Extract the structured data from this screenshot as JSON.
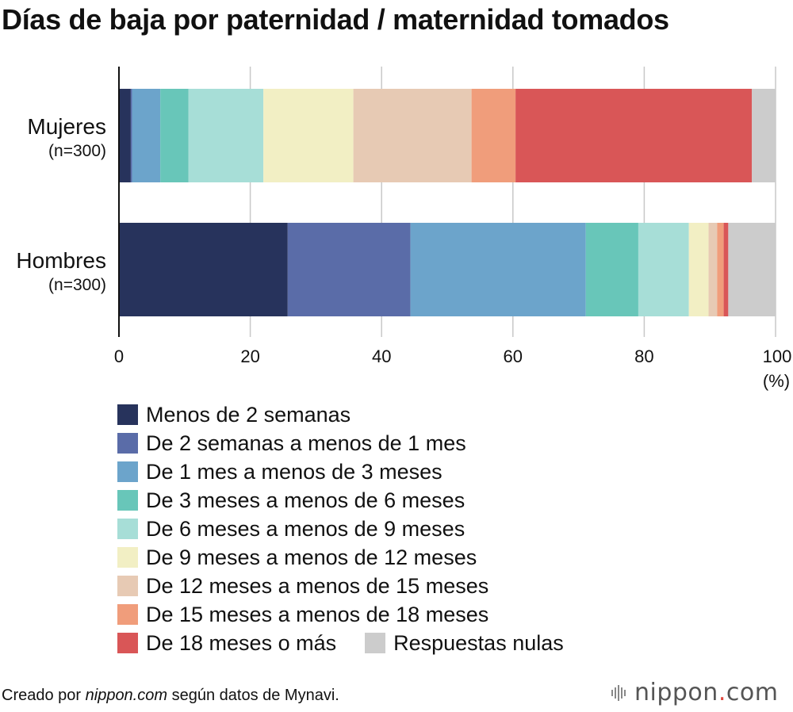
{
  "title": "Días de baja por paternidad / maternidad tomados",
  "chart_data": {
    "type": "bar",
    "orientation": "horizontal",
    "stacked": true,
    "categories": [
      {
        "name": "Mujeres",
        "n": "(n=300)"
      },
      {
        "name": "Hombres",
        "n": "(n=300)"
      }
    ],
    "xlim": [
      0,
      100
    ],
    "xticks": [
      0,
      20,
      40,
      60,
      80,
      100
    ],
    "xunit": "(%)",
    "grid": true,
    "legend_position": "bottom",
    "series": [
      {
        "name": "Menos de 2 semanas",
        "color": "#27335c",
        "values": [
          1.8,
          25.7
        ]
      },
      {
        "name": "De 2 semanas a menos de 1 mes",
        "color": "#5a6ca8",
        "values": [
          0.2,
          18.7
        ]
      },
      {
        "name": "De 1 mes a menos de 3 meses",
        "color": "#6ca4cb",
        "values": [
          4.3,
          26.7
        ]
      },
      {
        "name": "De 3 meses a menos de 6 meses",
        "color": "#68c6b9",
        "values": [
          4.3,
          8.0
        ]
      },
      {
        "name": "De 6 meses a menos de 9 meses",
        "color": "#a7ded7",
        "values": [
          11.4,
          7.7
        ]
      },
      {
        "name": "De 9 meses a menos de 12 meses",
        "color": "#f2efc4",
        "values": [
          13.7,
          3.0
        ]
      },
      {
        "name": "De 12 meses a menos de 15 meses",
        "color": "#e7cab4",
        "values": [
          18.0,
          1.3
        ]
      },
      {
        "name": "De 15 meses a menos de 18 meses",
        "color": "#f09d7b",
        "values": [
          6.7,
          1.0
        ]
      },
      {
        "name": "De 18 meses o más",
        "color": "#d95657",
        "values": [
          36.0,
          0.7
        ]
      },
      {
        "name": "Respuestas nulas",
        "color": "#cccccc",
        "values": [
          3.6,
          7.2
        ]
      }
    ]
  },
  "footer": {
    "prefix": "Creado por ",
    "site": "nippon.com",
    "suffix": " según datos de Mynavi."
  },
  "logo": {
    "text_main": "nippon",
    "text_dot": ".",
    "text_end": "com"
  }
}
